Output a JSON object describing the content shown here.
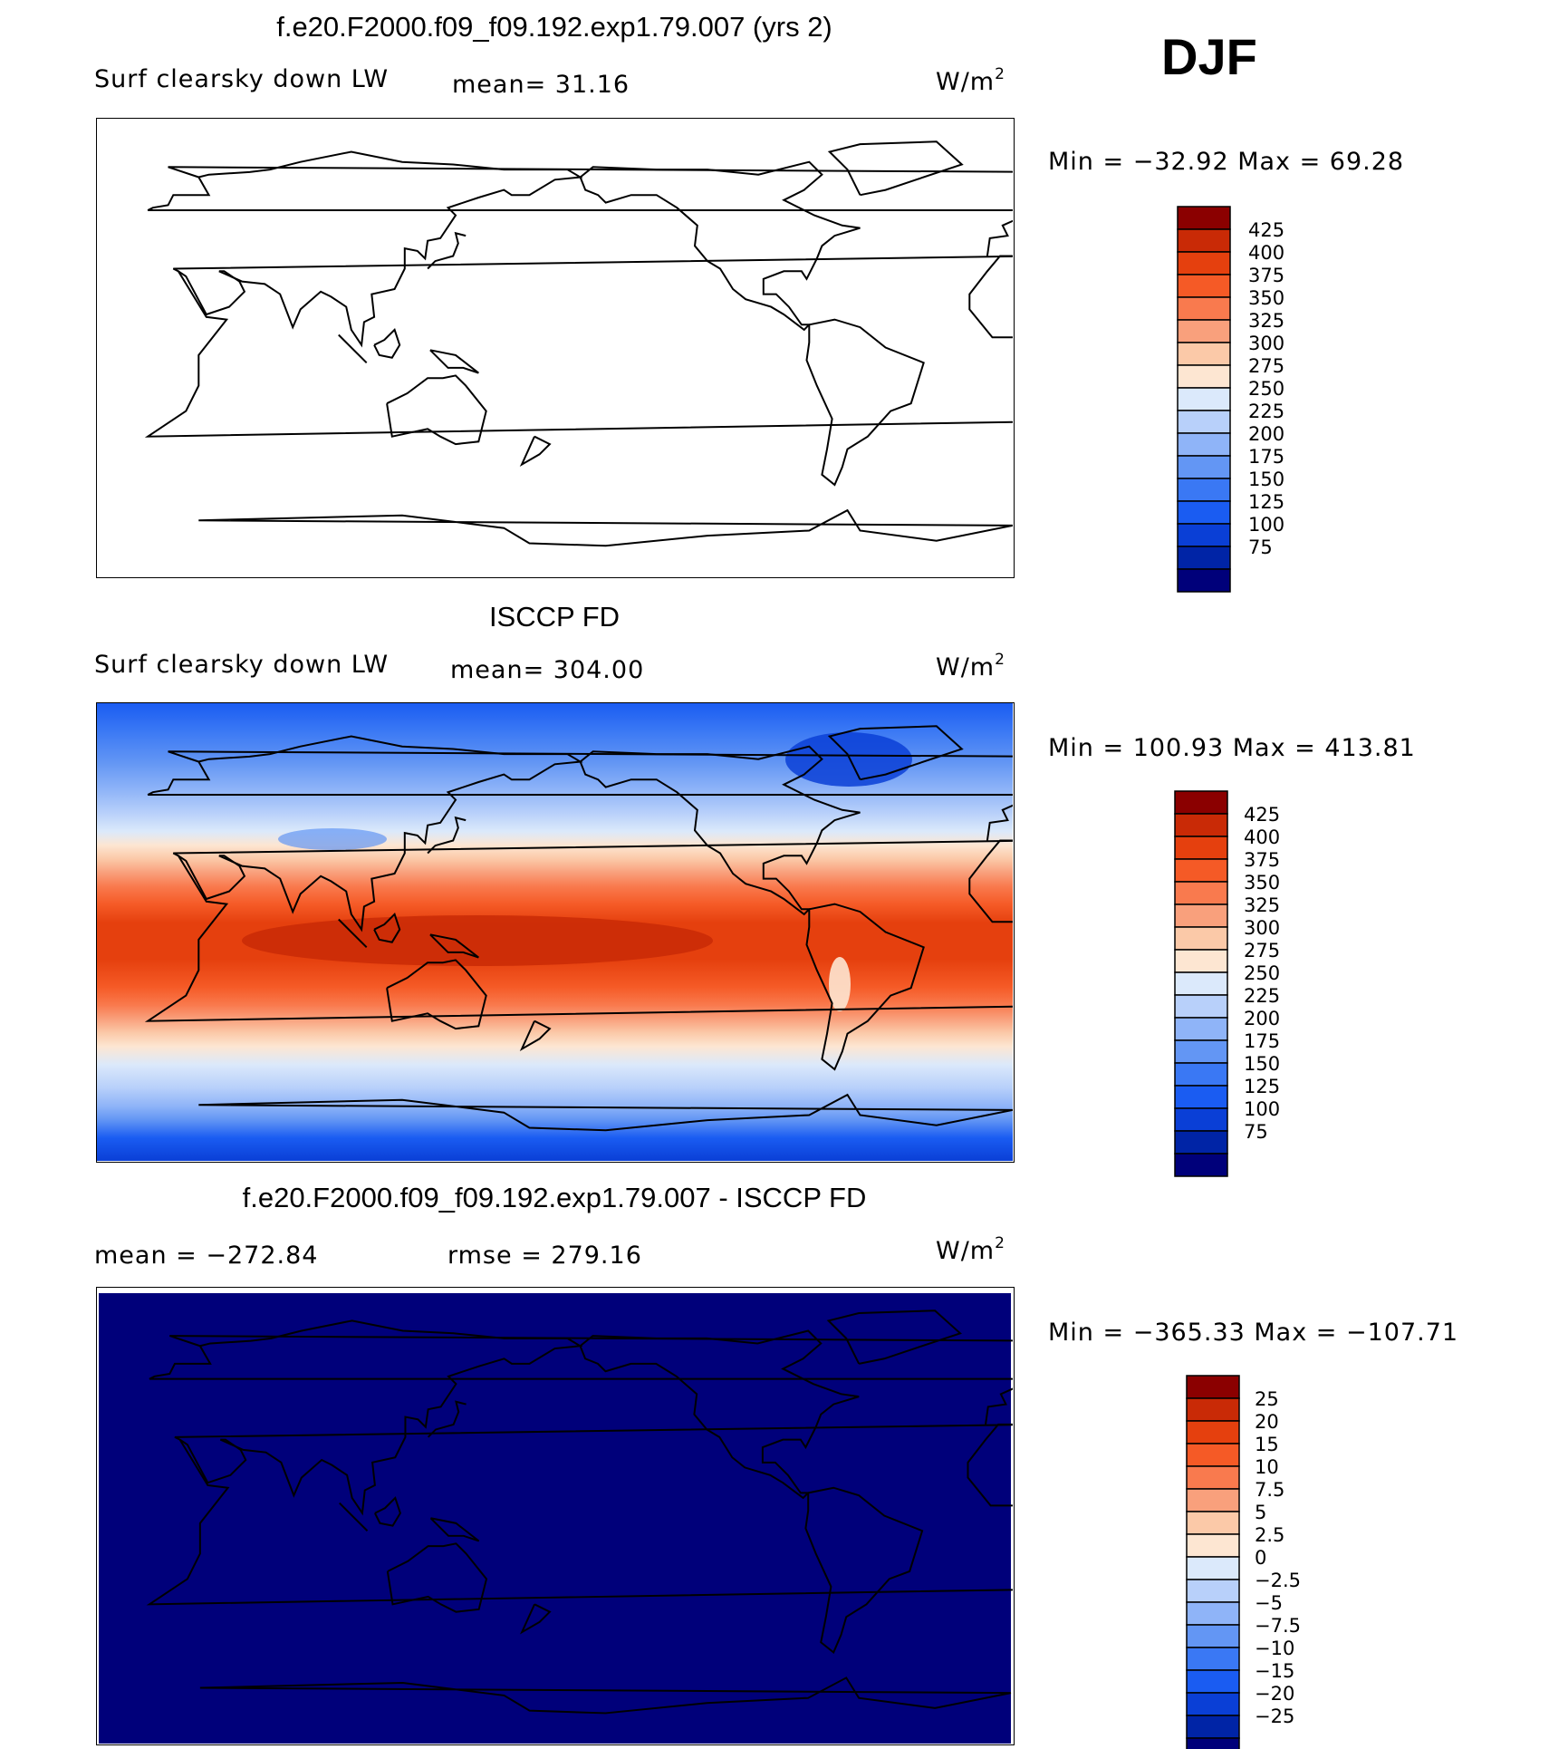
{
  "season": "DJF",
  "unit_base": "W/m",
  "unit_exp": "2",
  "colors": [
    "#00007a",
    "#0024a6",
    "#0a3fd6",
    "#1a5cf2",
    "#3a78f4",
    "#6396f4",
    "#8fb4f8",
    "#b8d0fa",
    "#dbe9fb",
    "#fde6d2",
    "#fbc9a8",
    "#f9a07c",
    "#f97a4e",
    "#f55a26",
    "#e5400e",
    "#c92a06",
    "#8b0000"
  ],
  "panels": [
    {
      "title": "f.e20.F2000.f09_f09.192.exp1.79.007 (yrs 2)",
      "left_label": "Surf clearsky down LW",
      "mid_label": "mean=  31.16",
      "stats": "Min = −32.92 Max =   69.28",
      "levels": [
        "425",
        "400",
        "375",
        "350",
        "325",
        "300",
        "275",
        "250",
        "225",
        "200",
        "175",
        "150",
        "125",
        "100",
        "75"
      ]
    },
    {
      "title": "ISCCP FD",
      "left_label": "Surf clearsky down LW",
      "mid_label": "mean= 304.00",
      "stats": "Min = 100.93 Max = 413.81",
      "levels": [
        "425",
        "400",
        "375",
        "350",
        "325",
        "300",
        "275",
        "250",
        "225",
        "200",
        "175",
        "150",
        "125",
        "100",
        "75"
      ]
    },
    {
      "title": "f.e20.F2000.f09_f09.192.exp1.79.007 - ISCCP FD",
      "left_label": "mean = −272.84",
      "mid_label": "rmse = 279.16",
      "stats": "Min = −365.33 Max = −107.71",
      "levels": [
        "25",
        "20",
        "15",
        "10",
        "7.5",
        "5",
        "2.5",
        "0",
        "−2.5",
        "−5",
        "−7.5",
        "−10",
        "−15",
        "−20",
        "−25"
      ]
    }
  ],
  "chart_data": [
    {
      "type": "heatmap",
      "title": "f.e20.F2000.f09_f09.192.exp1.79.007 (yrs 2)",
      "variable": "Surf clearsky down LW",
      "units": "W/m2",
      "mean": 31.16,
      "min": -32.92,
      "max": 69.28,
      "contour_levels": [
        75,
        100,
        125,
        150,
        175,
        200,
        225,
        250,
        275,
        300,
        325,
        350,
        375,
        400,
        425
      ],
      "x": "longitude 0-360 (Pacific-centred)",
      "y": "latitude -90..90"
    },
    {
      "type": "heatmap",
      "title": "ISCCP FD",
      "variable": "Surf clearsky down LW",
      "units": "W/m2",
      "mean": 304.0,
      "min": 100.93,
      "max": 413.81,
      "contour_levels": [
        75,
        100,
        125,
        150,
        175,
        200,
        225,
        250,
        275,
        300,
        325,
        350,
        375,
        400,
        425
      ],
      "x": "longitude 0-360 (Pacific-centred)",
      "y": "latitude -90..90"
    },
    {
      "type": "heatmap",
      "title": "f.e20.F2000.f09_f09.192.exp1.79.007 - ISCCP FD",
      "units": "W/m2",
      "mean": -272.84,
      "rmse": 279.16,
      "min": -365.33,
      "max": -107.71,
      "contour_levels": [
        -25,
        -20,
        -15,
        -10,
        -7.5,
        -5,
        -2.5,
        0,
        2.5,
        5,
        7.5,
        10,
        15,
        20,
        25
      ]
    }
  ]
}
